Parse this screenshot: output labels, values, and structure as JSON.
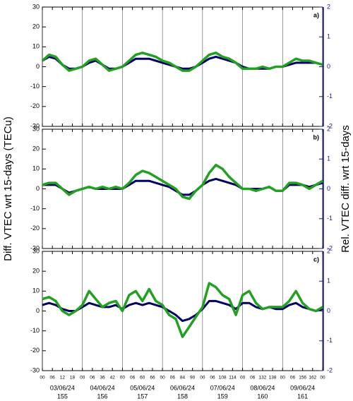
{
  "chart_data": [
    {
      "type": "line",
      "panel_label": "a)",
      "x": [
        0,
        4,
        8,
        12,
        16,
        20,
        24,
        28,
        32,
        36,
        40,
        44,
        48,
        52,
        56,
        60,
        64,
        68,
        72,
        76,
        80,
        84,
        88,
        92,
        96,
        100,
        104,
        108,
        112,
        116,
        120,
        124,
        128,
        132,
        136,
        140,
        144,
        148,
        152,
        156,
        160,
        164,
        168
      ],
      "xlim": [
        0,
        168
      ],
      "ylim": [
        -30,
        30
      ],
      "yticks": [
        -30,
        -20,
        -10,
        0,
        10,
        20,
        30
      ],
      "y2lim": [
        -2,
        2
      ],
      "y2ticks": [
        -2,
        -1,
        0,
        1,
        2
      ],
      "series": [
        {
          "color": "#000066",
          "values": [
            3,
            5,
            4,
            1,
            -1,
            -1,
            0,
            2,
            3,
            1,
            -1,
            -1,
            0,
            2,
            4,
            4,
            4,
            3,
            2,
            1,
            0,
            -1,
            -1,
            0,
            2,
            4,
            5,
            4,
            3,
            2,
            0,
            -1,
            -1,
            -1,
            -1,
            0,
            0,
            1,
            2,
            2,
            2,
            2,
            1
          ]
        },
        {
          "color": "#22a022",
          "values": [
            3,
            6,
            5,
            1,
            -2,
            -1,
            0,
            3,
            4,
            1,
            -2,
            -1,
            0,
            3,
            6,
            7,
            6,
            5,
            3,
            2,
            0,
            -2,
            -2,
            0,
            3,
            6,
            7,
            5,
            4,
            2,
            -1,
            -1,
            -1,
            0,
            -1,
            0,
            0,
            2,
            4,
            3,
            3,
            2,
            1
          ]
        }
      ]
    },
    {
      "type": "line",
      "panel_label": "b)",
      "ylabel": "Diff. VTEC wrt 15-days (TECu)",
      "y2label": "Rel. VTEC diff. wrt 15-days",
      "x": [
        0,
        4,
        8,
        12,
        16,
        20,
        24,
        28,
        32,
        36,
        40,
        44,
        48,
        52,
        56,
        60,
        64,
        68,
        72,
        76,
        80,
        84,
        88,
        92,
        96,
        100,
        104,
        108,
        112,
        116,
        120,
        124,
        128,
        132,
        136,
        140,
        144,
        148,
        152,
        156,
        160,
        164,
        168
      ],
      "xlim": [
        0,
        168
      ],
      "ylim": [
        -30,
        30
      ],
      "yticks": [
        -30,
        -20,
        -10,
        0,
        10,
        20,
        30
      ],
      "y2lim": [
        -2,
        2
      ],
      "y2ticks": [
        -2,
        -1,
        0,
        1,
        2
      ],
      "series": [
        {
          "color": "#000066",
          "values": [
            2,
            2,
            2,
            0,
            -2,
            -1,
            0,
            1,
            0,
            0,
            0,
            0,
            0,
            2,
            4,
            4,
            4,
            3,
            2,
            1,
            -1,
            -3,
            -3,
            -1,
            2,
            4,
            5,
            4,
            3,
            2,
            0,
            0,
            0,
            0,
            1,
            -1,
            -1,
            2,
            2,
            2,
            1,
            2,
            3
          ]
        },
        {
          "color": "#22a022",
          "values": [
            2,
            3,
            3,
            0,
            -3,
            -1,
            0,
            1,
            0,
            1,
            0,
            1,
            0,
            3,
            7,
            9,
            8,
            6,
            4,
            2,
            0,
            -4,
            -5,
            -1,
            2,
            8,
            12,
            10,
            6,
            3,
            0,
            0,
            -1,
            0,
            1,
            -1,
            -1,
            3,
            3,
            2,
            0,
            2,
            4
          ]
        }
      ]
    },
    {
      "type": "line",
      "panel_label": "c)",
      "x": [
        0,
        4,
        8,
        12,
        16,
        20,
        24,
        28,
        32,
        36,
        40,
        44,
        48,
        52,
        56,
        60,
        64,
        68,
        72,
        76,
        80,
        84,
        88,
        92,
        96,
        100,
        104,
        108,
        112,
        116,
        120,
        124,
        128,
        132,
        136,
        140,
        144,
        148,
        152,
        156,
        160,
        164,
        168
      ],
      "xlim": [
        0,
        168
      ],
      "ylim": [
        -30,
        30
      ],
      "yticks": [
        -30,
        -20,
        -10,
        0,
        10,
        20,
        30
      ],
      "y2lim": [
        -2,
        2
      ],
      "y2ticks": [
        -2,
        -1,
        0,
        1,
        2
      ],
      "xticks": [
        {
          "value": 0,
          "label": "00"
        },
        {
          "value": 6,
          "label": "06"
        },
        12,
        18,
        {
          "value": 24,
          "label": "00"
        },
        {
          "value": 30,
          "label": "06"
        },
        36,
        42,
        {
          "value": 48,
          "label": "00"
        },
        {
          "value": 54,
          "label": "06"
        },
        60,
        66,
        {
          "value": 72,
          "label": "00"
        },
        {
          "value": 78,
          "label": "06"
        },
        84,
        90,
        {
          "value": 96,
          "label": "00"
        },
        {
          "value": 102,
          "label": "06"
        },
        108,
        114,
        {
          "value": 120,
          "label": "00"
        },
        {
          "value": 126,
          "label": "06"
        },
        132,
        138,
        {
          "value": 144,
          "label": "00"
        },
        {
          "value": 150,
          "label": "06"
        },
        156,
        162,
        {
          "value": 168,
          "label": "00"
        }
      ],
      "day_labels": [
        "03/06/24",
        "04/06/24",
        "05/06/24",
        "06/06/24",
        "07/06/24",
        "08/06/24",
        "09/06/24"
      ],
      "doy_labels": [
        155,
        156,
        157,
        158,
        159,
        160,
        161
      ],
      "series": [
        {
          "color": "#000066",
          "values": [
            3,
            4,
            3,
            1,
            0,
            0,
            2,
            4,
            3,
            2,
            2,
            3,
            1,
            3,
            4,
            3,
            4,
            3,
            2,
            0,
            -2,
            -5,
            -4,
            -2,
            1,
            5,
            5,
            4,
            3,
            1,
            4,
            4,
            2,
            1,
            2,
            1,
            1,
            3,
            4,
            2,
            1,
            0,
            1
          ]
        },
        {
          "color": "#22a022",
          "values": [
            6,
            7,
            5,
            0,
            -2,
            0,
            3,
            10,
            6,
            2,
            4,
            5,
            0,
            8,
            10,
            5,
            11,
            5,
            3,
            -2,
            -4,
            -13,
            -8,
            -3,
            2,
            14,
            12,
            8,
            6,
            -2,
            8,
            10,
            4,
            1,
            2,
            2,
            2,
            5,
            10,
            4,
            1,
            0,
            2
          ]
        }
      ]
    }
  ]
}
